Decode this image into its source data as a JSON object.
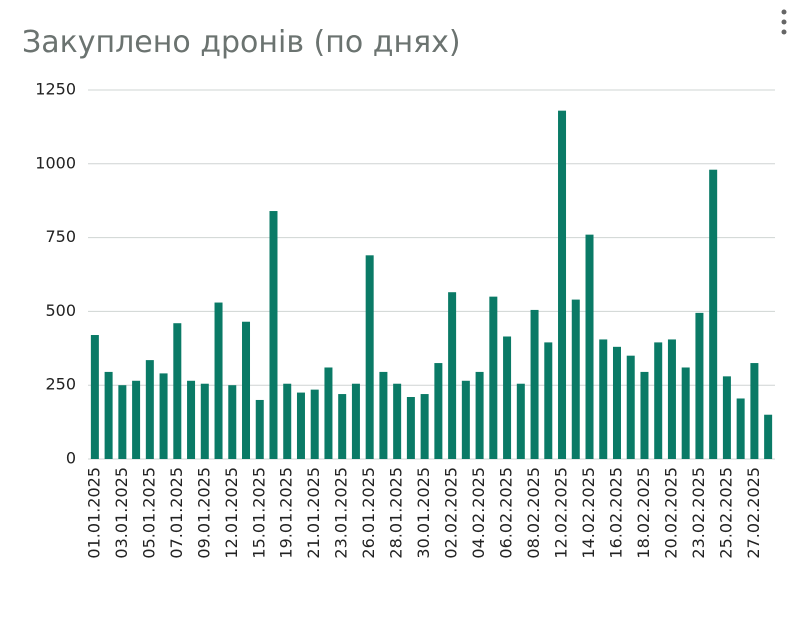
{
  "chart_data": {
    "type": "bar",
    "title": "Закуплено дронів (по днях)",
    "categories": [
      "01.01.2025",
      null,
      "03.01.2025",
      null,
      "05.01.2025",
      null,
      "07.01.2025",
      null,
      "09.01.2025",
      null,
      "12.01.2025",
      null,
      "15.01.2025",
      null,
      "19.01.2025",
      null,
      "21.01.2025",
      null,
      "23.01.2025",
      null,
      "26.01.2025",
      null,
      "28.01.2025",
      null,
      "30.01.2025",
      null,
      "02.02.2025",
      null,
      "04.02.2025",
      null,
      "06.02.2025",
      null,
      "08.02.2025",
      null,
      "12.02.2025",
      null,
      "14.02.2025",
      null,
      "16.02.2025",
      null,
      "18.02.2025",
      null,
      "20.02.2025",
      null,
      "23.02.2025",
      null,
      "25.02.2025",
      null,
      "27.02.2025",
      null
    ],
    "values": [
      420,
      295,
      250,
      265,
      335,
      290,
      460,
      265,
      255,
      530,
      250,
      465,
      200,
      840,
      255,
      225,
      235,
      310,
      220,
      255,
      690,
      295,
      255,
      210,
      220,
      325,
      565,
      265,
      295,
      550,
      415,
      255,
      505,
      395,
      1180,
      540,
      760,
      405,
      380,
      350,
      295,
      395,
      405,
      310,
      495,
      980,
      280,
      205,
      325,
      150
    ],
    "color": "#0a7a66",
    "ylim": [
      0,
      1250
    ],
    "yticks": [
      0,
      250,
      500,
      750,
      1000,
      1250
    ],
    "grid": true
  }
}
